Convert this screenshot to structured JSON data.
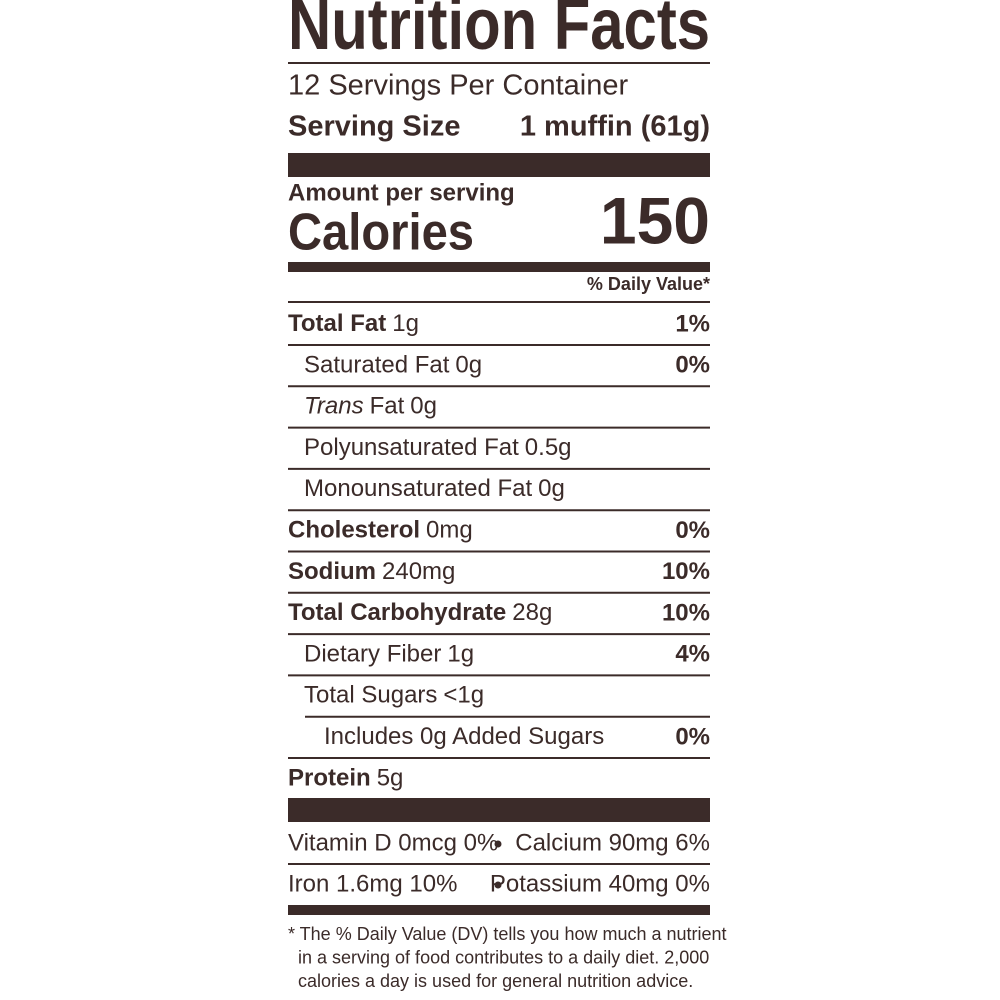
{
  "header": {
    "title": "Nutrition Facts",
    "servings": "12 Servings Per Container",
    "serving_size_label": "Serving Size",
    "serving_size_value": "1 muffin (61g)"
  },
  "calories": {
    "amount_label": "Amount per serving",
    "label": "Calories",
    "value": 150
  },
  "daily_value_header": "% Daily Value*",
  "nutrients": [
    {
      "name": "Total Fat",
      "amount": "1g",
      "dv": "1%",
      "sub": [
        {
          "name": "Saturated Fat",
          "amount": "0g",
          "dv": "0%"
        },
        {
          "name_italic": "Trans",
          "name": "Fat",
          "amount": "0g"
        },
        {
          "name": "Polyunsaturated Fat",
          "amount": "0.5g"
        },
        {
          "name": "Monounsaturated Fat",
          "amount": "0g"
        }
      ]
    },
    {
      "name": "Cholesterol",
      "amount": "0mg",
      "dv": "0%"
    },
    {
      "name": "Sodium",
      "amount": "240mg",
      "dv": "10%"
    },
    {
      "name": "Total Carbohydrate",
      "amount": "28g",
      "dv": "10%",
      "sub": [
        {
          "name": "Dietary Fiber",
          "amount": "1g",
          "dv": "4%"
        },
        {
          "name": "Total Sugars",
          "amount": "<1g",
          "sub": [
            {
              "name": "Includes 0g Added Sugars",
              "dv": "0%"
            }
          ]
        }
      ]
    },
    {
      "name": "Protein",
      "amount": "5g"
    }
  ],
  "vitamins": [
    [
      "Vitamin D 0mcg 0%",
      "Calcium 90mg 6%"
    ],
    [
      "Iron 1.6mg 10%",
      "Potassium 40mg 0%"
    ]
  ],
  "footnote": [
    "* The % Daily Value (DV) tells you how much a nutrient",
    "in a serving of food contributes to a daily diet. 2,000",
    "calories a day is used for general nutrition advice."
  ]
}
